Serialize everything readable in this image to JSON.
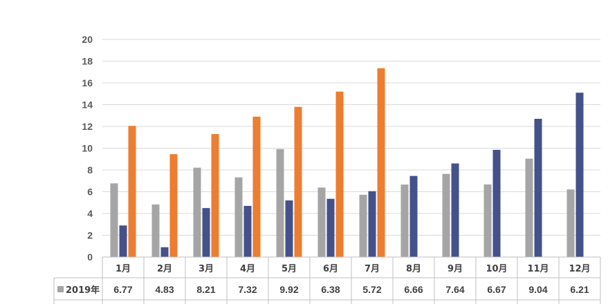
{
  "chart_data": {
    "type": "bar",
    "categories": [
      "1月",
      "2月",
      "3月",
      "4月",
      "5月",
      "6月",
      "7月",
      "8月",
      "9月",
      "10月",
      "11月",
      "12月"
    ],
    "ylim": [
      0,
      20
    ],
    "yticks": [
      0,
      2,
      4,
      6,
      8,
      10,
      12,
      14,
      16,
      18,
      20
    ],
    "grid": true,
    "data_table": true,
    "series": [
      {
        "name": "2019年",
        "color": "#a5a5a5",
        "values": [
          6.77,
          4.83,
          8.21,
          7.32,
          9.92,
          6.38,
          5.72,
          6.66,
          7.64,
          6.67,
          9.04,
          6.21
        ]
      },
      {
        "color": "#44518a",
        "values": [
          2.9,
          0.9,
          4.5,
          4.7,
          5.2,
          5.35,
          6.05,
          7.45,
          8.6,
          9.85,
          12.7,
          15.1
        ]
      },
      {
        "color": "#ed7d31",
        "values": [
          12.05,
          9.45,
          11.3,
          12.9,
          13.8,
          15.2,
          17.35,
          null,
          null,
          null,
          null,
          null
        ]
      }
    ]
  }
}
